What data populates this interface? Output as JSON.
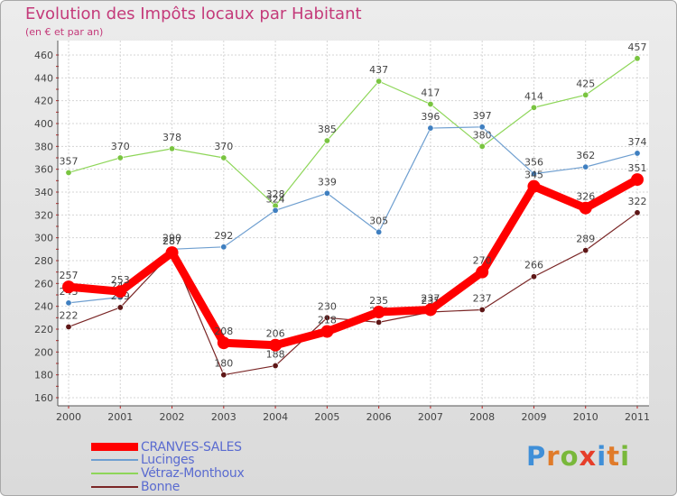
{
  "title": "Evolution des Impôts locaux par Habitant",
  "subtitle": "(en € et par an)",
  "brand": {
    "text": "Proxiti",
    "letters": [
      {
        "char": "P",
        "color": "#3f8fd8"
      },
      {
        "char": "r",
        "color": "#e07b2a"
      },
      {
        "char": "o",
        "color": "#79b83b"
      },
      {
        "char": "x",
        "color": "#e63e2a"
      },
      {
        "char": "i",
        "color": "#3f8fd8"
      },
      {
        "char": "t",
        "color": "#e07b2a"
      },
      {
        "char": "i",
        "color": "#79b83b"
      }
    ]
  },
  "chart_data": {
    "type": "line",
    "title": "Evolution des Impôts locaux par Habitant",
    "subtitle": "(en € et par an)",
    "xlabel": "",
    "ylabel": "",
    "ylim": [
      160,
      460
    ],
    "ytick_step": 20,
    "grid": true,
    "legend_position": "bottom-left",
    "categories": [
      "2000",
      "2001",
      "2002",
      "2003",
      "2004",
      "2005",
      "2006",
      "2007",
      "2008",
      "2009",
      "2010",
      "2011"
    ],
    "series": [
      {
        "name": "Vétraz-Monthoux",
        "color": "#8ed659",
        "marker": "#79c440",
        "values": [
          357,
          370,
          378,
          370,
          328,
          385,
          437,
          417,
          380,
          414,
          425,
          457
        ]
      },
      {
        "name": "Lucinges",
        "color": "#6f9fd0",
        "marker": "#3f7fc0",
        "values": [
          243,
          248,
          290,
          292,
          324,
          339,
          305,
          396,
          397,
          356,
          362,
          374
        ]
      },
      {
        "name": "Bonne",
        "color": "#7a2626",
        "marker": "#5e1616",
        "values": [
          222,
          239,
          287,
          180,
          188,
          230,
          226,
          235,
          237,
          266,
          289,
          322
        ]
      },
      {
        "name": "CRANVES-SALES",
        "color": "#ff0000",
        "marker": "#ff0000",
        "values": [
          257,
          253,
          287,
          208,
          206,
          218,
          235,
          237,
          270,
          345,
          326,
          351
        ]
      }
    ]
  }
}
